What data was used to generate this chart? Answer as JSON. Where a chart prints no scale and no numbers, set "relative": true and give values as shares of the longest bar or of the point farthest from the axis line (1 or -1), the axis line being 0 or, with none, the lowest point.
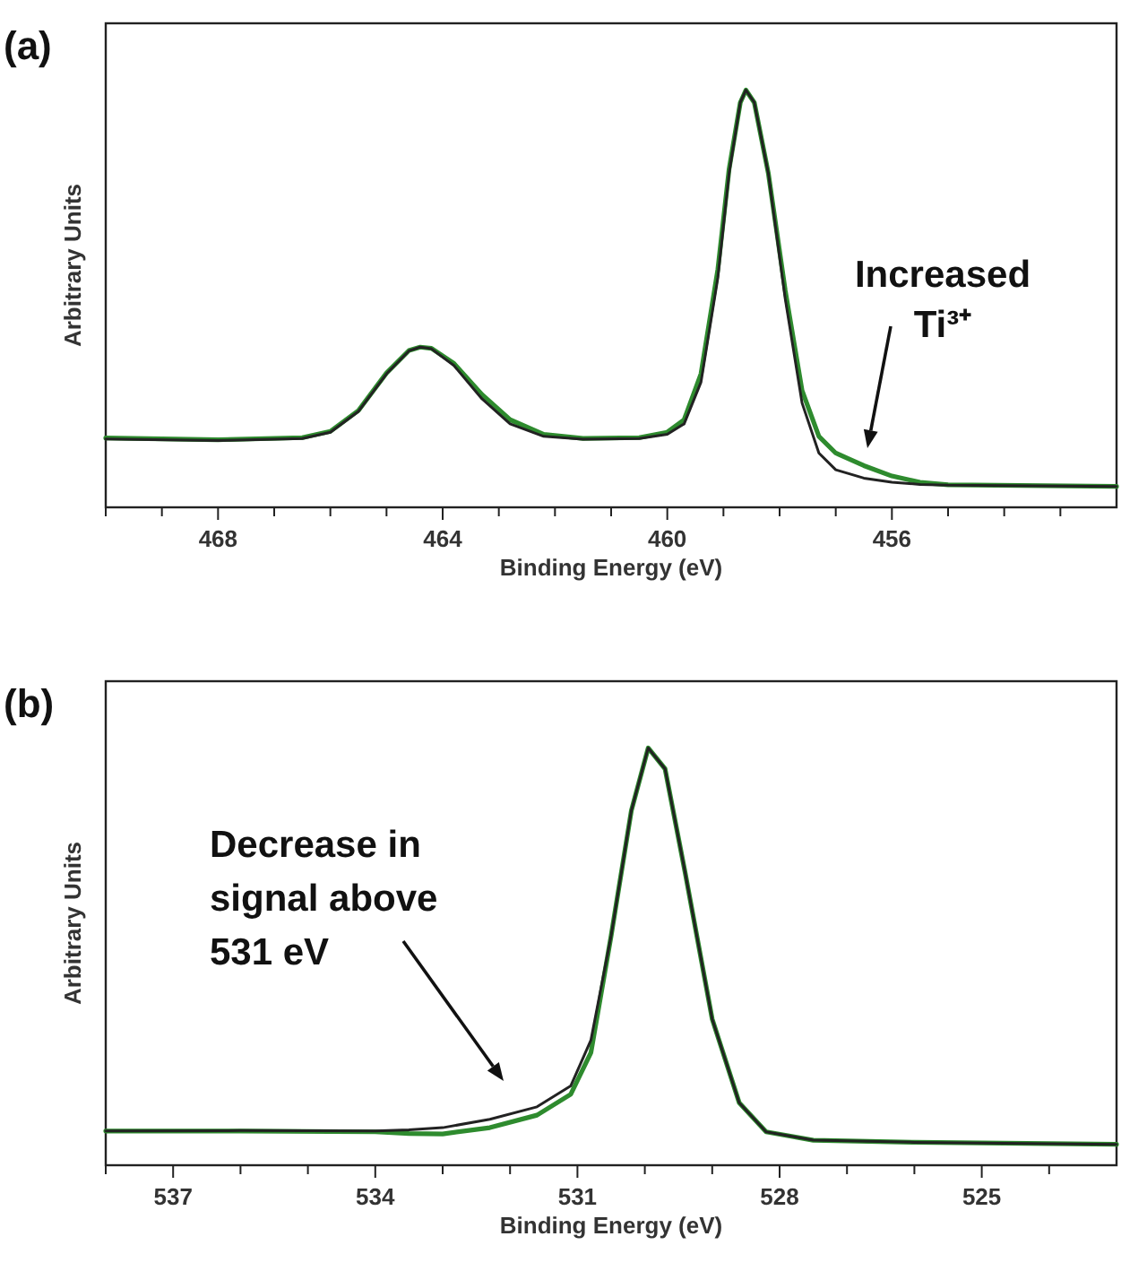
{
  "chart_data": [
    {
      "type": "line",
      "title": "(a)",
      "xlabel": "Binding Energy (eV)",
      "ylabel": "Arbitrary Units",
      "relative": true,
      "xlim": [
        470,
        452
      ],
      "xticks": [
        {
          "value": 470,
          "label": null
        },
        {
          "value": 469,
          "label": null
        },
        468,
        {
          "value": 467,
          "label": null
        },
        {
          "value": 466,
          "label": null
        },
        {
          "value": 465,
          "label": null
        },
        464,
        {
          "value": 463,
          "label": null
        },
        {
          "value": 462,
          "label": null
        },
        {
          "value": 461,
          "label": null
        },
        460,
        {
          "value": 459,
          "label": null
        },
        {
          "value": 458,
          "label": null
        },
        {
          "value": 457,
          "label": null
        },
        456,
        {
          "value": 455,
          "label": null
        },
        {
          "value": 454,
          "label": null
        },
        {
          "value": 453,
          "label": null
        }
      ],
      "annotations": [
        "Increased\nTi³⁺"
      ],
      "series": [
        {
          "color": "#2e8b2e",
          "x": [
            470,
            468,
            466.5,
            466,
            465.5,
            465,
            464.6,
            464.4,
            464.2,
            463.8,
            463.3,
            462.8,
            462.2,
            461.5,
            460.5,
            460,
            459.7,
            459.4,
            459.1,
            458.9,
            458.7,
            458.6,
            458.45,
            458.2,
            457.9,
            457.6,
            457.3,
            457,
            456.5,
            456,
            455.5,
            455,
            452
          ],
          "values": [
            0.166,
            0.162,
            0.167,
            0.182,
            0.232,
            0.322,
            0.376,
            0.384,
            0.381,
            0.345,
            0.27,
            0.21,
            0.175,
            0.165,
            0.167,
            0.18,
            0.21,
            0.32,
            0.57,
            0.81,
            0.97,
            1.0,
            0.97,
            0.8,
            0.52,
            0.28,
            0.17,
            0.13,
            0.1,
            0.075,
            0.06,
            0.054,
            0.05
          ]
        },
        {
          "color": "#222222",
          "x": [
            470,
            468,
            466.5,
            466,
            465.5,
            465,
            464.6,
            464.4,
            464.2,
            463.8,
            463.3,
            462.8,
            462.2,
            461.5,
            460.5,
            460,
            459.7,
            459.4,
            459.1,
            458.9,
            458.7,
            458.6,
            458.45,
            458.2,
            457.9,
            457.6,
            457.3,
            457,
            456.5,
            456,
            455.5,
            455,
            452
          ],
          "values": [
            0.164,
            0.16,
            0.165,
            0.18,
            0.23,
            0.32,
            0.375,
            0.384,
            0.38,
            0.34,
            0.26,
            0.2,
            0.17,
            0.163,
            0.165,
            0.175,
            0.2,
            0.3,
            0.55,
            0.8,
            0.97,
            1.0,
            0.97,
            0.8,
            0.5,
            0.25,
            0.13,
            0.09,
            0.07,
            0.06,
            0.055,
            0.053,
            0.05
          ]
        }
      ]
    },
    {
      "type": "line",
      "title": "(b)",
      "xlabel": "Binding Energy (eV)",
      "ylabel": "Arbitrary Units",
      "relative": true,
      "xlim": [
        538,
        523
      ],
      "xticks": [
        {
          "value": 538,
          "label": null
        },
        537,
        {
          "value": 536,
          "label": null
        },
        {
          "value": 535,
          "label": null
        },
        534,
        {
          "value": 533,
          "label": null
        },
        {
          "value": 532,
          "label": null
        },
        531,
        {
          "value": 530,
          "label": null
        },
        {
          "value": 529,
          "label": null
        },
        528,
        {
          "value": 527,
          "label": null
        },
        {
          "value": 526,
          "label": null
        },
        525,
        {
          "value": 524,
          "label": null
        }
      ],
      "annotations": [
        "Decrease in\nsignal above\n531 eV"
      ],
      "series": [
        {
          "color": "#2e8b2e",
          "x": [
            538,
            536,
            534,
            533.5,
            533,
            532.3,
            531.6,
            531.1,
            530.8,
            530.5,
            530.2,
            529.95,
            529.7,
            529.4,
            529,
            528.6,
            528.2,
            527.5,
            526,
            523
          ],
          "values": [
            0.082,
            0.082,
            0.08,
            0.076,
            0.075,
            0.09,
            0.12,
            0.17,
            0.27,
            0.55,
            0.85,
            1.0,
            0.95,
            0.7,
            0.35,
            0.15,
            0.08,
            0.06,
            0.055,
            0.05
          ]
        },
        {
          "color": "#222222",
          "x": [
            538,
            536,
            534,
            533.5,
            533,
            532.3,
            531.6,
            531.1,
            530.8,
            530.5,
            530.2,
            529.95,
            529.7,
            529.4,
            529,
            528.6,
            528.2,
            527.5,
            526,
            523
          ],
          "values": [
            0.082,
            0.083,
            0.082,
            0.085,
            0.09,
            0.11,
            0.14,
            0.19,
            0.3,
            0.55,
            0.85,
            1.0,
            0.95,
            0.7,
            0.35,
            0.15,
            0.08,
            0.06,
            0.055,
            0.05
          ]
        }
      ]
    }
  ]
}
